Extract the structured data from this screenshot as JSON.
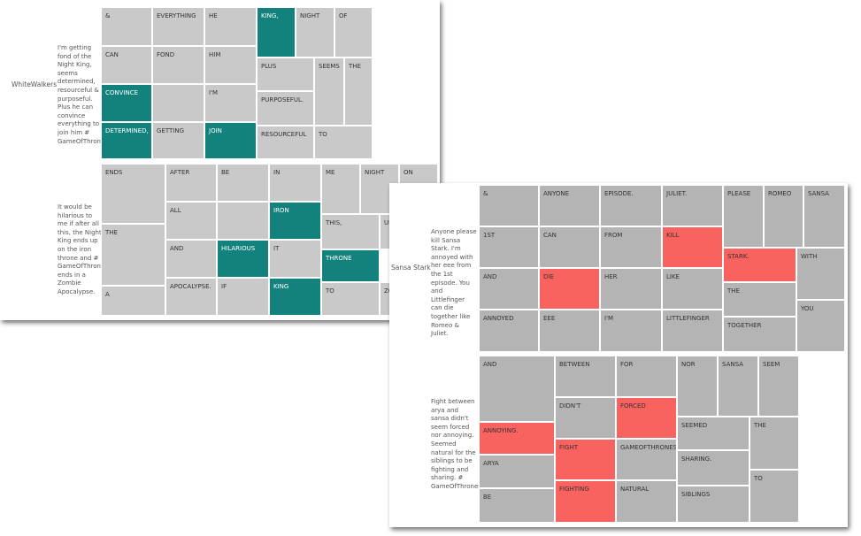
{
  "panels": [
    {
      "label": "WhiteWalkers",
      "base_color": "#c9c9c9",
      "highlight_color": "#13827d",
      "rows": [
        {
          "tweet": "I'm getting fond of the Night King, seems determined, resourceful & purposeful. Plus he can convince everything to join him # GameOfThrones",
          "cells": [
            {
              "word": "&",
              "highlight": false
            },
            {
              "word": "EVERYTHING",
              "highlight": false
            },
            {
              "word": "HE",
              "highlight": false
            },
            {
              "word": "KING,",
              "highlight": true
            },
            {
              "word": "NIGHT",
              "highlight": false
            },
            {
              "word": "OF",
              "highlight": false
            },
            {
              "word": "PLUS",
              "highlight": false
            },
            {
              "word": "SEEMS",
              "highlight": false
            },
            {
              "word": "THE",
              "highlight": false
            },
            {
              "word": "PURPOSEFUL.",
              "highlight": false
            },
            {
              "word": "RESOURCEFUL",
              "highlight": false
            },
            {
              "word": "TO",
              "highlight": false
            },
            {
              "word": "CAN",
              "highlight": false
            },
            {
              "word": "FOND",
              "highlight": false
            },
            {
              "word": "HIM",
              "highlight": false
            },
            {
              "word": "CONVINCE",
              "highlight": true
            },
            {
              "word": null,
              "highlight": false
            },
            {
              "word": "I'M",
              "highlight": false
            },
            {
              "word": "DETERMINED,",
              "highlight": true
            },
            {
              "word": "GETTING",
              "highlight": false
            },
            {
              "word": "JOIN",
              "highlight": true
            }
          ]
        },
        {
          "tweet": "It would be hilarious to me if after all this, the Night King ends up on the iron throne and # GameOfThrones ends in a Zombie Apocalypse.",
          "cells": [
            {
              "word": "ENDS",
              "highlight": false
            },
            {
              "word": "AFTER",
              "highlight": false
            },
            {
              "word": "BE",
              "highlight": false
            },
            {
              "word": "IN",
              "highlight": false
            },
            {
              "word": "ME",
              "highlight": false
            },
            {
              "word": "NIGHT",
              "highlight": false
            },
            {
              "word": "ON",
              "highlight": false
            },
            {
              "word": "THE",
              "highlight": false
            },
            {
              "word": "A",
              "highlight": false
            },
            {
              "word": "ALL",
              "highlight": false
            },
            {
              "word": null,
              "highlight": false
            },
            {
              "word": "IRON",
              "highlight": true
            },
            {
              "word": "THIS,",
              "highlight": false
            },
            {
              "word": "UP",
              "highlight": false
            },
            {
              "word": "AND",
              "highlight": false
            },
            {
              "word": "HILARIOUS",
              "highlight": true
            },
            {
              "word": "IT",
              "highlight": false
            },
            {
              "word": "THRONE",
              "highlight": true
            },
            {
              "word": "APOCALYPSE.",
              "highlight": false
            },
            {
              "word": "IF",
              "highlight": false
            },
            {
              "word": "KING",
              "highlight": true
            },
            {
              "word": "TO",
              "highlight": false
            },
            {
              "word": "ZOMBIE",
              "highlight": false
            }
          ]
        }
      ]
    },
    {
      "label": "Sansa Stark",
      "base_color": "#b4b4b4",
      "highlight_color": "#f8625f",
      "rows": [
        {
          "tweet": "Anyone please kill Sansa Stark. I'm annoyed with her eee from the 1st episode. You and Littlefinger can die together like Romeo & Juliet.",
          "cells": [
            {
              "word": "&",
              "highlight": false
            },
            {
              "word": "ANYONE",
              "highlight": false
            },
            {
              "word": "EPISODE.",
              "highlight": false
            },
            {
              "word": "JULIET.",
              "highlight": false
            },
            {
              "word": "PLEASE",
              "highlight": false
            },
            {
              "word": "ROMEO",
              "highlight": false
            },
            {
              "word": "SANSA",
              "highlight": false
            },
            {
              "word": "1ST",
              "highlight": false
            },
            {
              "word": "CAN",
              "highlight": false
            },
            {
              "word": "FROM",
              "highlight": false
            },
            {
              "word": "KILL",
              "highlight": true
            },
            {
              "word": "STARK.",
              "highlight": true
            },
            {
              "word": "WITH",
              "highlight": false
            },
            {
              "word": "THE",
              "highlight": false
            },
            {
              "word": "YOU",
              "highlight": false
            },
            {
              "word": "TOGETHER",
              "highlight": false
            },
            {
              "word": "AND",
              "highlight": false
            },
            {
              "word": "DIE",
              "highlight": true
            },
            {
              "word": "HER",
              "highlight": false
            },
            {
              "word": "LIKE",
              "highlight": false
            },
            {
              "word": "ANNOYED",
              "highlight": false
            },
            {
              "word": "EEE",
              "highlight": false
            },
            {
              "word": "I'M",
              "highlight": false
            },
            {
              "word": "LITTLEFINGER",
              "highlight": false
            }
          ]
        },
        {
          "tweet": "Fight between arya and sansa didn't seem forced nor annoying. Seemed natural for the siblings to be fighting and sharing. # GameOfThrones",
          "cells": [
            {
              "word": "AND",
              "highlight": false
            },
            {
              "word": "BETWEEN",
              "highlight": false
            },
            {
              "word": "FOR",
              "highlight": false
            },
            {
              "word": "NOR",
              "highlight": false
            },
            {
              "word": "SANSA",
              "highlight": false
            },
            {
              "word": "SEEM",
              "highlight": false
            },
            {
              "word": "DIDN'T",
              "highlight": false
            },
            {
              "word": "FORCED",
              "highlight": true
            },
            {
              "word": "SEEMED",
              "highlight": false
            },
            {
              "word": "THE",
              "highlight": false
            },
            {
              "word": "SHARING.",
              "highlight": false
            },
            {
              "word": "TO",
              "highlight": false
            },
            {
              "word": "SIBLINGS",
              "highlight": false
            },
            {
              "word": "ANNOYING.",
              "highlight": true
            },
            {
              "word": "ARYA",
              "highlight": false
            },
            {
              "word": "BE",
              "highlight": false
            },
            {
              "word": "FIGHT",
              "highlight": true
            },
            {
              "word": "GAMEOFTHRONES",
              "highlight": false
            },
            {
              "word": "FIGHTING",
              "highlight": true
            },
            {
              "word": "NATURAL",
              "highlight": false
            }
          ]
        }
      ]
    }
  ]
}
